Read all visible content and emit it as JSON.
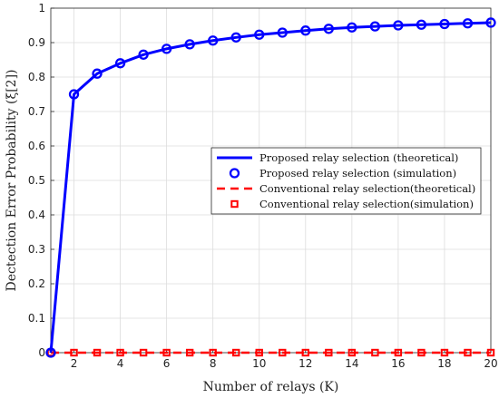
{
  "chart_data": {
    "type": "line",
    "title": "",
    "xlabel": "Number of relays (K)",
    "ylabel": "Dectection Error Probability (ξ[2])",
    "xlim": [
      1,
      20
    ],
    "ylim": [
      0,
      1
    ],
    "xticks": [
      2,
      4,
      6,
      8,
      10,
      12,
      14,
      16,
      18,
      20
    ],
    "yticks": [
      0,
      0.1,
      0.2,
      0.3,
      0.4,
      0.5,
      0.6,
      0.7,
      0.8,
      0.9,
      1
    ],
    "grid": true,
    "legend_position": "right",
    "x": [
      1,
      2,
      3,
      4,
      5,
      6,
      7,
      8,
      9,
      10,
      11,
      12,
      13,
      14,
      15,
      16,
      17,
      18,
      19,
      20
    ],
    "series": [
      {
        "name": "Proposed relay selection (theoretical)",
        "style": "solid-line",
        "color": "#0000ff",
        "values": [
          0,
          0.75,
          0.81,
          0.84,
          0.865,
          0.882,
          0.895,
          0.906,
          0.915,
          0.923,
          0.929,
          0.935,
          0.94,
          0.944,
          0.947,
          0.95,
          0.952,
          0.954,
          0.956,
          0.958
        ]
      },
      {
        "name": "Proposed relay selection (simulation)",
        "style": "circle-markers",
        "color": "#0000ff",
        "values": [
          0,
          0.75,
          0.81,
          0.84,
          0.865,
          0.882,
          0.895,
          0.906,
          0.915,
          0.923,
          0.929,
          0.935,
          0.94,
          0.944,
          0.947,
          0.95,
          0.952,
          0.954,
          0.956,
          0.958
        ]
      },
      {
        "name": "Conventional relay selection(theoretical)",
        "style": "dashed-line",
        "color": "#ff0000",
        "values": [
          0,
          0,
          0,
          0,
          0,
          0,
          0,
          0,
          0,
          0,
          0,
          0,
          0,
          0,
          0,
          0,
          0,
          0,
          0,
          0
        ]
      },
      {
        "name": "Conventional relay selection(simulation)",
        "style": "square-markers",
        "color": "#ff0000",
        "values": [
          0,
          0,
          0,
          0,
          0,
          0,
          0,
          0,
          0,
          0,
          0,
          0,
          0,
          0,
          0,
          0,
          0,
          0,
          0,
          0
        ]
      }
    ]
  }
}
